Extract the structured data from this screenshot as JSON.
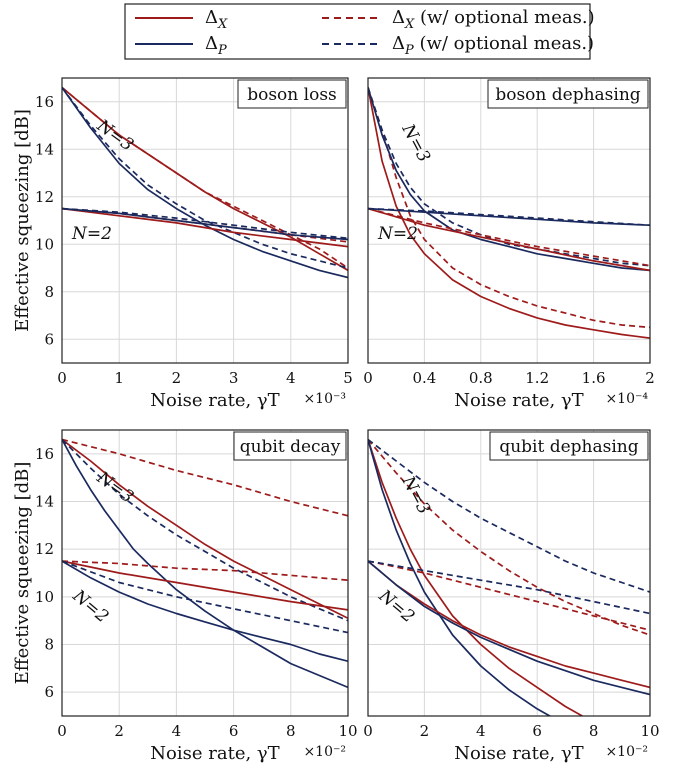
{
  "legend": {
    "items": [
      {
        "label": "Δ_X",
        "color": "#9e1b1b",
        "dashed": false
      },
      {
        "label": "Δ_P",
        "color": "#1b2a5e",
        "dashed": false
      },
      {
        "label": "Δ_X (w/ optional meas.)",
        "color": "#9e1b1b",
        "dashed": true
      },
      {
        "label": "Δ_P (w/ optional meas.)",
        "color": "#1b2a5e",
        "dashed": true
      }
    ]
  },
  "colors": {
    "dx": "#9e1b1b",
    "dp": "#1b2a5e",
    "grid": "#d8d8d8"
  },
  "chart_data": [
    {
      "type": "line",
      "title": "boson loss",
      "xlabel": "Noise rate, γT",
      "x_multiplier": "×10⁻³",
      "ylabel": "Effective squeezing [dB]",
      "xlim": [
        0,
        5
      ],
      "ylim": [
        5,
        17
      ],
      "xticks": [
        0,
        1,
        2,
        3,
        4,
        5
      ],
      "xticklabels": [
        "0",
        "1",
        "2",
        "3",
        "4",
        "5"
      ],
      "yticks": [
        6,
        8,
        10,
        12,
        14,
        16
      ],
      "grid": true,
      "curve_labels": [
        "N=3",
        "N=2"
      ],
      "series": [
        {
          "name": "Δ_X",
          "N": 3,
          "dashed": false,
          "x": [
            0,
            0.5,
            1,
            1.5,
            2,
            2.5,
            3,
            3.5,
            4,
            4.5,
            5
          ],
          "y": [
            16.6,
            15.6,
            14.6,
            13.8,
            13.0,
            12.2,
            11.5,
            10.9,
            10.3,
            9.6,
            8.9
          ]
        },
        {
          "name": "Δ_X (w/ optional meas.)",
          "N": 3,
          "dashed": true,
          "x": [
            0,
            0.5,
            1,
            1.5,
            2,
            2.5,
            3,
            3.5,
            4,
            4.5,
            5
          ],
          "y": [
            16.6,
            15.6,
            14.6,
            13.8,
            13.0,
            12.2,
            11.6,
            11.0,
            10.4,
            9.8,
            9.0
          ]
        },
        {
          "name": "Δ_P",
          "N": 3,
          "dashed": false,
          "x": [
            0,
            0.5,
            1,
            1.5,
            2,
            2.5,
            3,
            3.5,
            4,
            4.5,
            5
          ],
          "y": [
            16.6,
            14.9,
            13.4,
            12.3,
            11.5,
            10.8,
            10.2,
            9.7,
            9.3,
            8.9,
            8.6
          ]
        },
        {
          "name": "Δ_P (w/ optional meas.)",
          "N": 3,
          "dashed": true,
          "x": [
            0,
            0.5,
            1,
            1.5,
            2,
            2.5,
            3,
            3.5,
            4,
            4.5,
            5
          ],
          "y": [
            16.6,
            15.0,
            13.6,
            12.5,
            11.7,
            11.0,
            10.5,
            10.0,
            9.6,
            9.3,
            9.0
          ]
        },
        {
          "name": "Δ_X",
          "N": 2,
          "dashed": false,
          "x": [
            0,
            1,
            2,
            3,
            4,
            5
          ],
          "y": [
            11.5,
            11.2,
            10.9,
            10.5,
            10.2,
            9.9
          ]
        },
        {
          "name": "Δ_X (w/ optional meas.)",
          "N": 2,
          "dashed": true,
          "x": [
            0,
            1,
            2,
            3,
            4,
            5
          ],
          "y": [
            11.5,
            11.3,
            11.0,
            10.7,
            10.4,
            10.1
          ]
        },
        {
          "name": "Δ_P",
          "N": 2,
          "dashed": false,
          "x": [
            0,
            1,
            2,
            3,
            4,
            5
          ],
          "y": [
            11.5,
            11.3,
            11.0,
            10.7,
            10.4,
            10.2
          ]
        },
        {
          "name": "Δ_P (w/ optional meas.)",
          "N": 2,
          "dashed": true,
          "x": [
            0,
            1,
            2,
            3,
            4,
            5
          ],
          "y": [
            11.5,
            11.35,
            11.1,
            10.8,
            10.5,
            10.25
          ]
        }
      ]
    },
    {
      "type": "line",
      "title": "boson dephasing",
      "xlabel": "Noise rate, γT",
      "x_multiplier": "×10⁻⁴",
      "ylabel": "",
      "xlim": [
        0,
        2
      ],
      "ylim": [
        5,
        17
      ],
      "xticks": [
        0,
        0.4,
        0.8,
        1.2,
        1.6,
        2
      ],
      "xticklabels": [
        "0",
        "0.4",
        "0.8",
        "1.2",
        "1.6",
        "2"
      ],
      "yticks": [
        6,
        8,
        10,
        12,
        14,
        16
      ],
      "grid": true,
      "curve_labels": [
        "N=3",
        "N=2"
      ],
      "series": [
        {
          "name": "Δ_X",
          "N": 3,
          "dashed": false,
          "x": [
            0,
            0.1,
            0.2,
            0.3,
            0.4,
            0.6,
            0.8,
            1.0,
            1.2,
            1.4,
            1.6,
            1.8,
            2.0
          ],
          "y": [
            16.6,
            13.5,
            11.6,
            10.4,
            9.6,
            8.5,
            7.8,
            7.3,
            6.9,
            6.6,
            6.4,
            6.2,
            6.05
          ]
        },
        {
          "name": "Δ_X (w/ optional meas.)",
          "N": 3,
          "dashed": true,
          "x": [
            0,
            0.1,
            0.2,
            0.3,
            0.4,
            0.6,
            0.8,
            1.0,
            1.2,
            1.4,
            1.6,
            1.8,
            2.0
          ],
          "y": [
            16.6,
            14.8,
            12.8,
            11.2,
            10.2,
            9.0,
            8.3,
            7.8,
            7.4,
            7.1,
            6.8,
            6.6,
            6.5
          ]
        },
        {
          "name": "Δ_P",
          "N": 3,
          "dashed": false,
          "x": [
            0,
            0.1,
            0.2,
            0.3,
            0.4,
            0.6,
            0.8,
            1.0,
            1.2,
            1.4,
            1.6,
            1.8,
            2.0
          ],
          "y": [
            16.6,
            14.6,
            13.1,
            12.1,
            11.4,
            10.6,
            10.2,
            9.9,
            9.6,
            9.4,
            9.2,
            9.0,
            8.9
          ]
        },
        {
          "name": "Δ_P (w/ optional meas.)",
          "N": 3,
          "dashed": true,
          "x": [
            0,
            0.1,
            0.2,
            0.3,
            0.4,
            0.6,
            0.8,
            1.0,
            1.2,
            1.4,
            1.6,
            1.8,
            2.0
          ],
          "y": [
            16.6,
            14.8,
            13.4,
            12.4,
            11.7,
            10.9,
            10.4,
            10.0,
            9.8,
            9.6,
            9.4,
            9.2,
            9.1
          ]
        },
        {
          "name": "Δ_X",
          "N": 2,
          "dashed": false,
          "x": [
            0,
            0.4,
            0.8,
            1.2,
            1.6,
            2.0
          ],
          "y": [
            11.5,
            10.8,
            10.3,
            9.8,
            9.3,
            8.9
          ]
        },
        {
          "name": "Δ_X (w/ optional meas.)",
          "N": 2,
          "dashed": true,
          "x": [
            0,
            0.4,
            0.8,
            1.2,
            1.6,
            2.0
          ],
          "y": [
            11.5,
            10.9,
            10.4,
            9.9,
            9.5,
            9.1
          ]
        },
        {
          "name": "Δ_P",
          "N": 2,
          "dashed": false,
          "x": [
            0,
            0.4,
            0.8,
            1.2,
            1.6,
            2.0
          ],
          "y": [
            11.5,
            11.35,
            11.2,
            11.05,
            10.9,
            10.8
          ]
        },
        {
          "name": "Δ_P (w/ optional meas.)",
          "N": 2,
          "dashed": true,
          "x": [
            0,
            0.4,
            0.8,
            1.2,
            1.6,
            2.0
          ],
          "y": [
            11.5,
            11.4,
            11.25,
            11.1,
            10.95,
            10.8
          ]
        }
      ]
    },
    {
      "type": "line",
      "title": "qubit decay",
      "xlabel": "Noise rate, γT",
      "x_multiplier": "×10⁻²",
      "ylabel": "Effective squeezing [dB]",
      "xlim": [
        0,
        10
      ],
      "ylim": [
        5,
        17
      ],
      "xticks": [
        0,
        2,
        4,
        6,
        8,
        10
      ],
      "xticklabels": [
        "0",
        "2",
        "4",
        "6",
        "8",
        "10"
      ],
      "yticks": [
        6,
        8,
        10,
        12,
        14,
        16
      ],
      "grid": true,
      "curve_labels": [
        "N=3",
        "N=2"
      ],
      "series": [
        {
          "name": "Δ_X",
          "N": 3,
          "dashed": false,
          "x": [
            0,
            1,
            2,
            3,
            4,
            5,
            6,
            7,
            8,
            9,
            10
          ],
          "y": [
            16.6,
            15.7,
            14.7,
            13.8,
            13.0,
            12.2,
            11.5,
            10.9,
            10.3,
            9.7,
            9.1
          ]
        },
        {
          "name": "Δ_X (w/ optional meas.)",
          "N": 3,
          "dashed": true,
          "x": [
            0,
            2,
            4,
            6,
            8,
            10
          ],
          "y": [
            16.6,
            16.0,
            15.3,
            14.7,
            14.0,
            13.4
          ]
        },
        {
          "name": "Δ_P",
          "N": 3,
          "dashed": false,
          "x": [
            0,
            0.5,
            1,
            1.5,
            2,
            2.5,
            3,
            4,
            5,
            6,
            7,
            8,
            9,
            10
          ],
          "y": [
            16.6,
            15.5,
            14.5,
            13.6,
            12.8,
            12.0,
            11.4,
            10.3,
            9.4,
            8.6,
            7.9,
            7.2,
            6.7,
            6.2
          ]
        },
        {
          "name": "Δ_P (w/ optional meas.)",
          "N": 3,
          "dashed": true,
          "x": [
            0,
            1,
            2,
            3,
            4,
            5,
            6,
            7,
            8,
            9,
            10
          ],
          "y": [
            16.6,
            15.4,
            14.3,
            13.4,
            12.6,
            11.9,
            11.2,
            10.6,
            10.0,
            9.5,
            9.0
          ]
        },
        {
          "name": "Δ_X",
          "N": 2,
          "dashed": false,
          "x": [
            0,
            2,
            4,
            6,
            8,
            10
          ],
          "y": [
            11.5,
            11.0,
            10.6,
            10.2,
            9.8,
            9.45
          ]
        },
        {
          "name": "Δ_X (w/ optional meas.)",
          "N": 2,
          "dashed": true,
          "x": [
            0,
            2,
            4,
            6,
            8,
            10
          ],
          "y": [
            11.5,
            11.4,
            11.2,
            11.1,
            10.9,
            10.7
          ]
        },
        {
          "name": "Δ_P",
          "N": 2,
          "dashed": false,
          "x": [
            0,
            1,
            2,
            3,
            4,
            5,
            6,
            7,
            8,
            9,
            10
          ],
          "y": [
            11.5,
            10.8,
            10.2,
            9.7,
            9.3,
            8.95,
            8.6,
            8.3,
            8.0,
            7.6,
            7.3
          ]
        },
        {
          "name": "Δ_P (w/ optional meas.)",
          "N": 2,
          "dashed": true,
          "x": [
            0,
            2,
            4,
            6,
            8,
            10
          ],
          "y": [
            11.5,
            10.6,
            10.0,
            9.5,
            9.0,
            8.5
          ]
        }
      ]
    },
    {
      "type": "line",
      "title": "qubit dephasing",
      "xlabel": "Noise rate, γT",
      "x_multiplier": "×10⁻²",
      "ylabel": "",
      "xlim": [
        0,
        10
      ],
      "ylim": [
        5,
        17
      ],
      "xticks": [
        0,
        2,
        4,
        6,
        8,
        10
      ],
      "xticklabels": [
        "0",
        "2",
        "4",
        "6",
        "8",
        "10"
      ],
      "yticks": [
        6,
        8,
        10,
        12,
        14,
        16
      ],
      "grid": true,
      "curve_labels": [
        "N=3",
        "N=2"
      ],
      "series": [
        {
          "name": "Δ_X",
          "N": 3,
          "dashed": false,
          "x": [
            0,
            0.5,
            1,
            1.5,
            2,
            3,
            4,
            5,
            6,
            7,
            7.6
          ],
          "y": [
            16.6,
            14.8,
            13.3,
            12.0,
            10.9,
            9.2,
            8.0,
            7.0,
            6.2,
            5.4,
            5.0
          ]
        },
        {
          "name": "Δ_X (w/ optional meas.)",
          "N": 3,
          "dashed": true,
          "x": [
            0,
            1,
            2,
            3,
            4,
            5,
            6,
            7,
            8,
            9,
            10
          ],
          "y": [
            16.6,
            15.2,
            13.9,
            12.8,
            11.9,
            11.1,
            10.4,
            9.8,
            9.3,
            8.8,
            8.4
          ]
        },
        {
          "name": "Δ_P",
          "N": 3,
          "dashed": false,
          "x": [
            0,
            0.5,
            1,
            1.5,
            2,
            3,
            4,
            5,
            6,
            6.6
          ],
          "y": [
            16.6,
            14.5,
            12.8,
            11.4,
            10.2,
            8.4,
            7.1,
            6.1,
            5.3,
            4.9
          ]
        },
        {
          "name": "Δ_P (w/ optional meas.)",
          "N": 3,
          "dashed": true,
          "x": [
            0,
            1,
            2,
            3,
            4,
            5,
            6,
            7,
            8,
            9,
            10
          ],
          "y": [
            16.6,
            15.7,
            14.8,
            14.0,
            13.3,
            12.7,
            12.1,
            11.5,
            11.0,
            10.6,
            10.2
          ]
        },
        {
          "name": "Δ_X",
          "N": 2,
          "dashed": false,
          "x": [
            0,
            1,
            2,
            3,
            4,
            5,
            6,
            7,
            8,
            9,
            10
          ],
          "y": [
            11.5,
            10.5,
            9.7,
            9.0,
            8.4,
            7.9,
            7.5,
            7.1,
            6.8,
            6.5,
            6.2
          ]
        },
        {
          "name": "Δ_X (w/ optional meas.)",
          "N": 2,
          "dashed": true,
          "x": [
            0,
            2,
            4,
            6,
            8,
            10
          ],
          "y": [
            11.5,
            11.0,
            10.4,
            9.8,
            9.2,
            8.6
          ]
        },
        {
          "name": "Δ_P",
          "N": 2,
          "dashed": false,
          "x": [
            0,
            1,
            2,
            3,
            4,
            5,
            6,
            7,
            8,
            9,
            10
          ],
          "y": [
            11.5,
            10.5,
            9.6,
            8.9,
            8.3,
            7.8,
            7.3,
            6.9,
            6.5,
            6.2,
            5.9
          ]
        },
        {
          "name": "Δ_P (w/ optional meas.)",
          "N": 2,
          "dashed": true,
          "x": [
            0,
            2,
            4,
            6,
            8,
            10
          ],
          "y": [
            11.5,
            11.1,
            10.7,
            10.3,
            9.8,
            9.3
          ]
        }
      ]
    }
  ]
}
